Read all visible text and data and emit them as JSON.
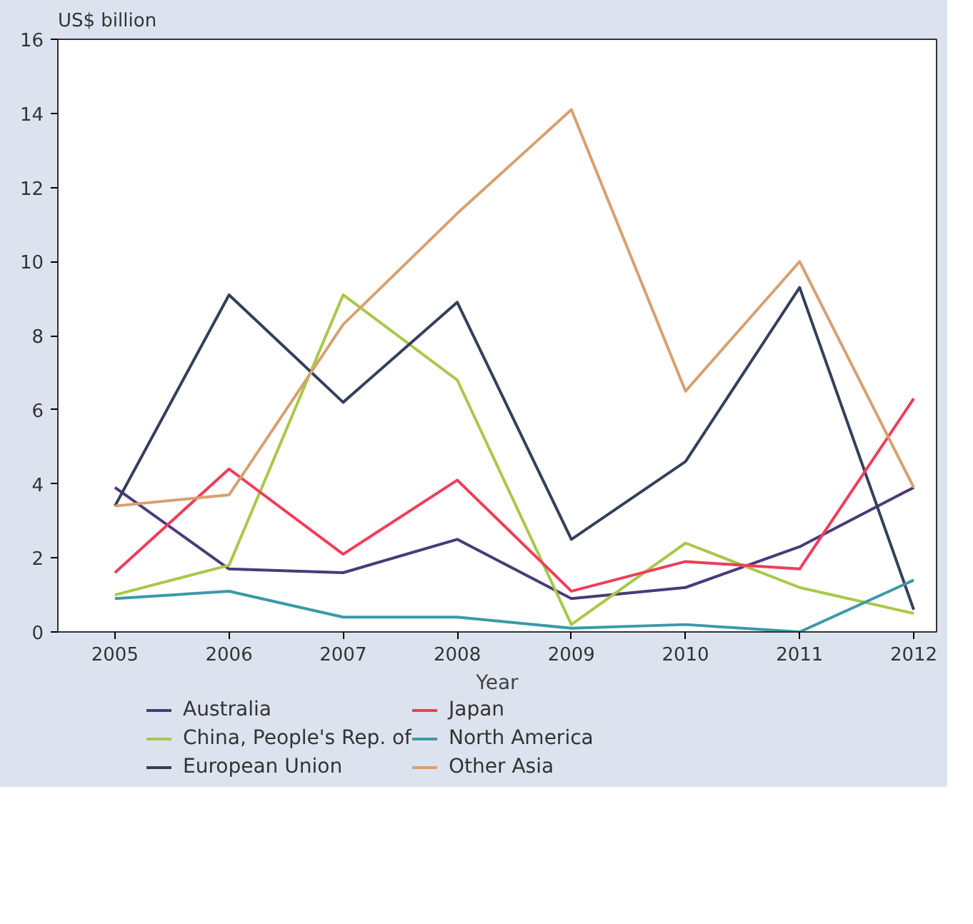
{
  "chart_data": {
    "type": "line",
    "ylabel": "US$ billion",
    "xlabel": "Year",
    "x": [
      2005,
      2006,
      2007,
      2008,
      2009,
      2010,
      2011,
      2012
    ],
    "xlim": [
      2004.5,
      2012.2
    ],
    "xticks": [
      2005,
      2006,
      2007,
      2008,
      2009,
      2010,
      2011,
      2012
    ],
    "ylim": [
      0,
      16
    ],
    "yticks": [
      0,
      2,
      4,
      6,
      8,
      10,
      12,
      14,
      16
    ],
    "grid": false,
    "legend": "bottom",
    "marker": "none",
    "line_style": "solid",
    "series": [
      {
        "name": "Australia",
        "color": "#4a3a78",
        "values": [
          3.9,
          1.7,
          1.6,
          2.5,
          0.9,
          1.2,
          2.3,
          3.9
        ]
      },
      {
        "name": "China, People's Rep. of",
        "color": "#a8c84a",
        "values": [
          1.0,
          1.8,
          9.1,
          6.8,
          0.2,
          2.4,
          1.2,
          0.5
        ]
      },
      {
        "name": "European Union",
        "color": "#34405a",
        "values": [
          3.4,
          9.1,
          6.2,
          8.9,
          2.5,
          4.6,
          9.3,
          0.6
        ]
      },
      {
        "name": "Japan",
        "color": "#f03c5a",
        "values": [
          1.6,
          4.4,
          2.1,
          4.1,
          1.1,
          1.9,
          1.7,
          6.3
        ]
      },
      {
        "name": "North America",
        "color": "#3a9aa8",
        "values": [
          0.9,
          1.1,
          0.4,
          0.4,
          0.1,
          0.2,
          0.0,
          1.4
        ]
      },
      {
        "name": "Other Asia",
        "color": "#d8a070",
        "values": [
          3.4,
          3.7,
          8.3,
          11.3,
          14.1,
          6.5,
          10.0,
          3.9
        ]
      }
    ]
  }
}
